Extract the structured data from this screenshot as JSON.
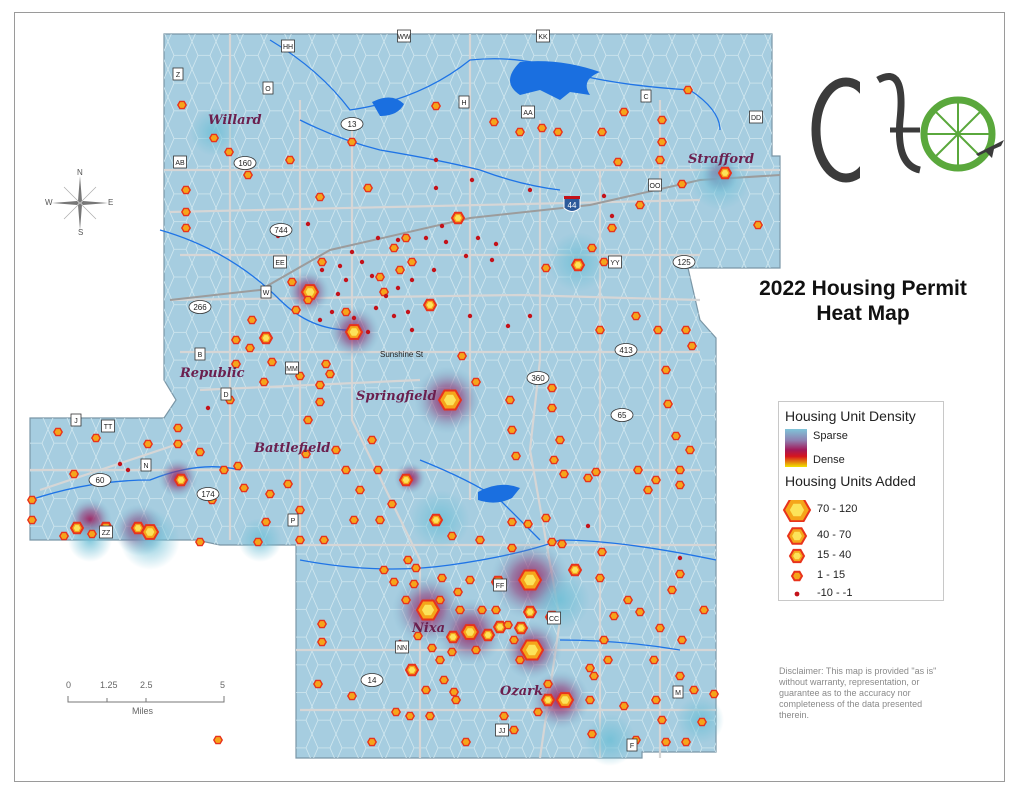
{
  "title": {
    "line1": "2022 Housing Permit",
    "line2": "Heat Map"
  },
  "legend": {
    "density_heading": "Housing Unit Density",
    "sparse_label": "Sparse",
    "dense_label": "Dense",
    "units_heading": "Housing Units Added",
    "classes": [
      {
        "label": "70 - 120",
        "symbol": "hexagon-xl"
      },
      {
        "label": "40 - 70",
        "symbol": "hexagon-lg"
      },
      {
        "label": "15 - 40",
        "symbol": "hexagon-md"
      },
      {
        "label": "1 - 15",
        "symbol": "hexagon-sm"
      },
      {
        "label": "-10 - -1",
        "symbol": "red-dot"
      }
    ]
  },
  "cities": [
    "Willard",
    "Strafford",
    "Republic",
    "Springfield",
    "Battlefield",
    "Nixa",
    "Ozark"
  ],
  "street_label": "Sunshine St",
  "route_shields": [
    "HH",
    "WW",
    "KK",
    "Z",
    "O",
    "H",
    "AA",
    "C",
    "DD",
    "13",
    "AB",
    "160",
    "OO",
    "744",
    "EE",
    "125",
    "YY",
    "266",
    "B",
    "MM",
    "413",
    "D",
    "360",
    "65",
    "J",
    "TT",
    "N",
    "60",
    "174",
    "ZZ",
    "P",
    "FF",
    "CC",
    "NN",
    "14",
    "M",
    "JJ",
    "F",
    "W",
    "44"
  ],
  "scale": {
    "ticks": [
      "0",
      "1.25",
      "2.5",
      "5"
    ],
    "unit": "Miles"
  },
  "compass": {
    "n": "N",
    "s": "S",
    "e": "E",
    "w": "W"
  },
  "disclaimer": "Disclaimer: This map is provided \"as is\" without warranty, representation, or guarantee as to the accuracy nor completeness of the data presented therein.",
  "colors": {
    "map_fill": "#a9cfe0",
    "hex_grid": "#cfe6ef",
    "water": "#1a6fe0",
    "roads": "#d4d4d4",
    "city_label": "#6b1f4e",
    "heat_dense": "#a21a5a",
    "hex_fill": "#f5a51a",
    "hex_stroke": "#e8331c",
    "negative_dot": "#c4121a",
    "logo_dark": "#3b3b3b",
    "logo_green": "#5aa83c"
  }
}
